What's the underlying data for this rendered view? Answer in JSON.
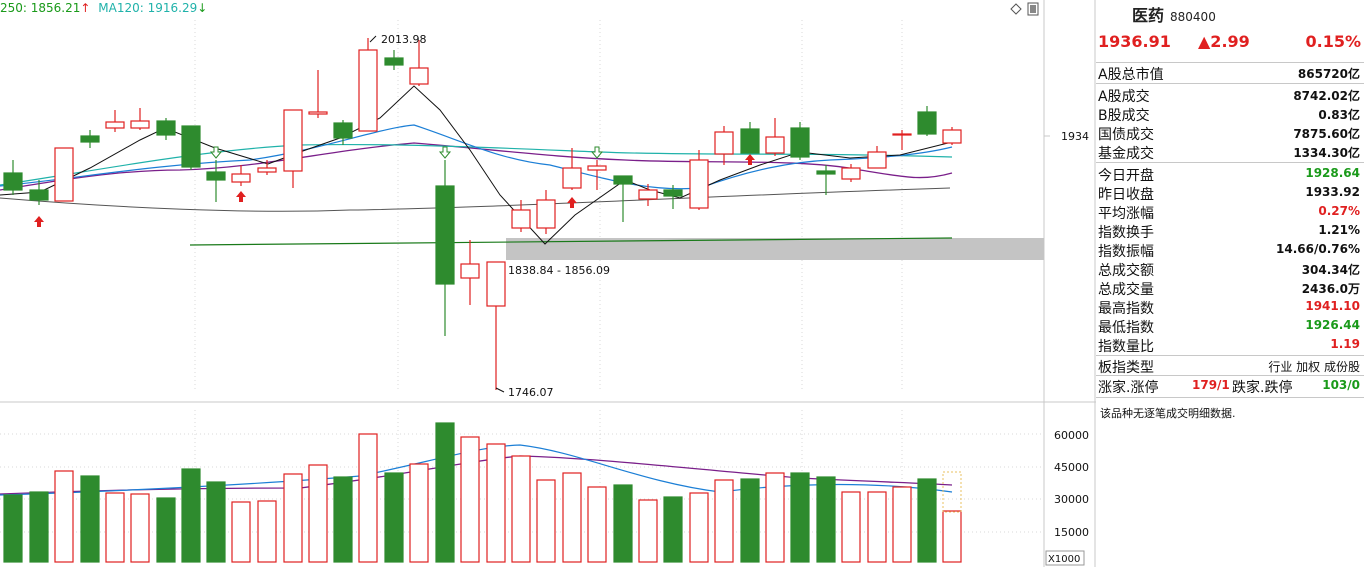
{
  "legend": {
    "ma250": "250: 1856.21",
    "ma250_arrow": "↑",
    "ma120": "MA120: 1916.29",
    "ma120_arrow": "↓"
  },
  "price_chart": {
    "high_label": "2013.98",
    "low_label": "1746.07",
    "zone_label": "1838.84 - 1856.09",
    "current_axis_label": "1934"
  },
  "volume_chart": {
    "axis_labels": [
      "60000",
      "45000",
      "30000",
      "15000"
    ],
    "unit_label": "X1000"
  },
  "colors": {
    "up": "#e02020",
    "down": "#2e8b2e",
    "ma_short": "#111111",
    "ma_mid": "#1c7fd6",
    "ma_long": "#7a1f8a",
    "ma_cyan": "#20b2aa"
  },
  "info": {
    "name": "医药",
    "code": "880400",
    "price": "1936.91",
    "change": "▲2.99",
    "pct": "0.15%",
    "rows": [
      {
        "label": "A股总市值",
        "value": "865720亿",
        "color": "blk"
      },
      {
        "label": "A股成交",
        "value": "8742.02亿",
        "color": "blk"
      },
      {
        "label": "B股成交",
        "value": "0.83亿",
        "color": "blk"
      },
      {
        "label": "国债成交",
        "value": "7875.60亿",
        "color": "blk"
      },
      {
        "label": "基金成交",
        "value": "1334.30亿",
        "color": "blk"
      },
      {
        "label": "今日开盘",
        "value": "1928.64",
        "color": "green"
      },
      {
        "label": "昨日收盘",
        "value": "1933.92",
        "color": "blk"
      },
      {
        "label": "平均涨幅",
        "value": "0.27%",
        "color": "red"
      },
      {
        "label": "指数换手",
        "value": "1.21%",
        "color": "blk"
      },
      {
        "label": "指数振幅",
        "value": "14.66/0.76%",
        "color": "blk"
      },
      {
        "label": "总成交额",
        "value": "304.34亿",
        "color": "blk"
      },
      {
        "label": "总成交量",
        "value": "2436.0万",
        "color": "blk"
      },
      {
        "label": "最高指数",
        "value": "1941.10",
        "color": "red"
      },
      {
        "label": "最低指数",
        "value": "1926.44",
        "color": "green"
      },
      {
        "label": "指数量比",
        "value": "1.19",
        "color": "red"
      }
    ],
    "type_label": "板指类型",
    "type_tags": "行业 加权 成份股",
    "updown_label": "涨家.涨停",
    "up_value": "179/1",
    "down_label": "跌家.跌停",
    "down_value": "103/0",
    "note": "该品种无逐笔成交明细数据."
  }
}
